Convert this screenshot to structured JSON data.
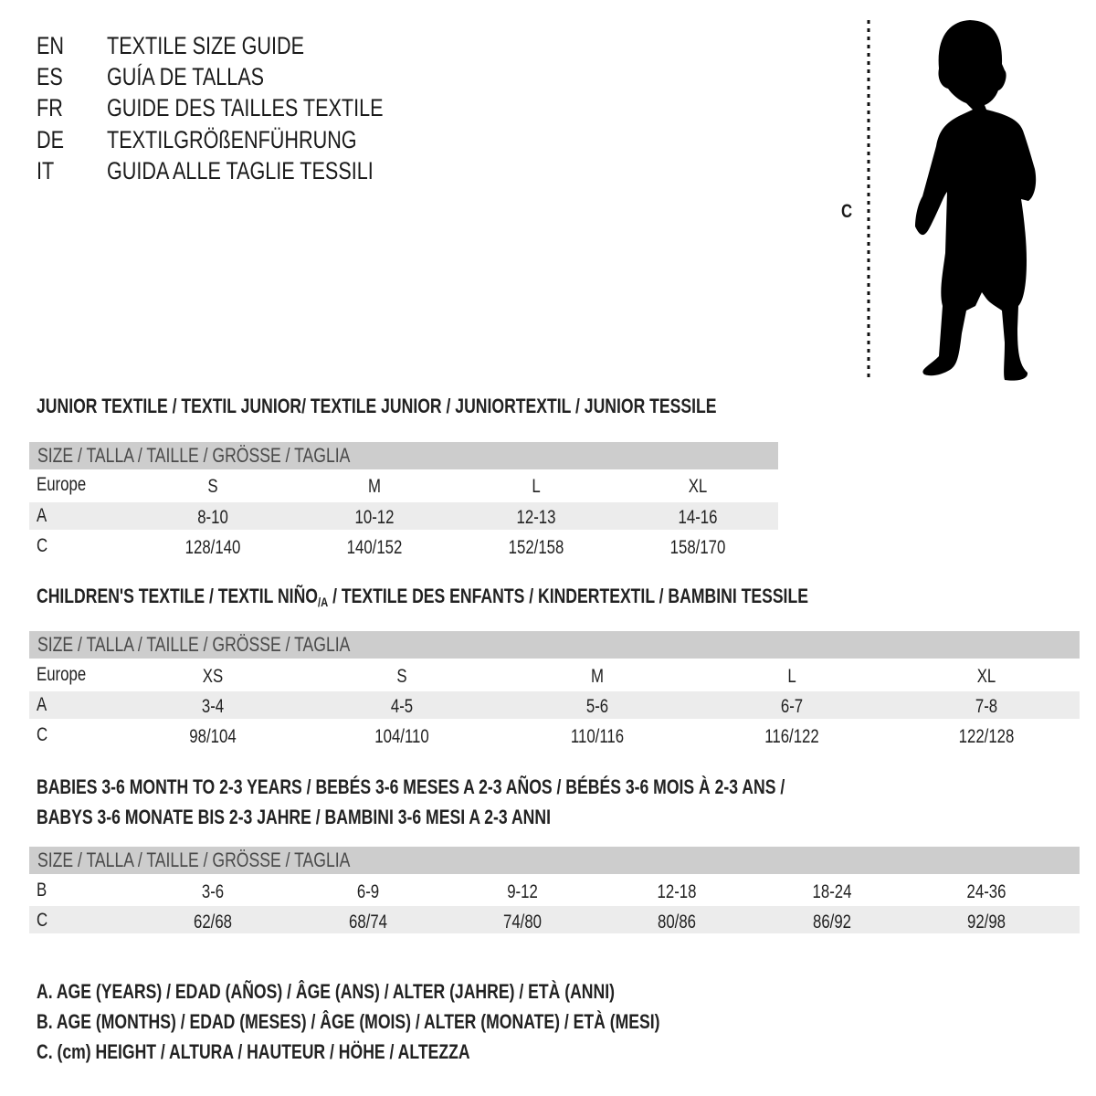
{
  "languages": [
    {
      "code": "EN",
      "title": "TEXTILE SIZE GUIDE"
    },
    {
      "code": "ES",
      "title": "GUÍA DE TALLAS"
    },
    {
      "code": "FR",
      "title": "GUIDE DES TAILLES TEXTILE"
    },
    {
      "code": "DE",
      "title": "TEXTILGRÖßENFÜHRUNG"
    },
    {
      "code": "IT",
      "title": "GUIDA ALLE TAGLIE TESSILI"
    }
  ],
  "figure": {
    "measure_label": "C"
  },
  "junior": {
    "heading": "JUNIOR TEXTILE / TEXTIL JUNIOR/ TEXTILE JUNIOR / JUNIORTEXTIL / JUNIOR TESSILE",
    "size_header": "SIZE / TALLA / TAILLE / GRÖSSE / TAGLIA",
    "rows": [
      {
        "label": "Europe",
        "values": [
          "S",
          "M",
          "L",
          "XL"
        ]
      },
      {
        "label": "A",
        "values": [
          "8-10",
          "10-12",
          "12-13",
          "14-16"
        ]
      },
      {
        "label": "C",
        "values": [
          "128/140",
          "140/152",
          "152/158",
          "158/170"
        ]
      }
    ]
  },
  "children": {
    "heading_before": "CHILDREN'S TEXTILE / TEXTIL NIÑO",
    "heading_sub": "/A",
    "heading_after": " / TEXTILE DES ENFANTS / KINDERTEXTIL / BAMBINI TESSILE",
    "size_header": "SIZE / TALLA / TAILLE / GRÖSSE / TAGLIA",
    "rows": [
      {
        "label": "Europe",
        "values": [
          "XS",
          "S",
          "M",
          "L",
          "XL"
        ]
      },
      {
        "label": "A",
        "values": [
          "3-4",
          "4-5",
          "5-6",
          "6-7",
          "7-8"
        ]
      },
      {
        "label": "C",
        "values": [
          "98/104",
          "104/110",
          "110/116",
          "116/122",
          "122/128"
        ]
      }
    ]
  },
  "babies": {
    "heading_line1": "BABIES 3-6 MONTH TO 2-3 YEARS / BEBÉS 3-6 MESES A 2-3 AÑOS / BÉBÉS 3-6 MOIS À 2-3 ANS /",
    "heading_line2": "BABYS 3-6 MONATE BIS 2-3 JAHRE / BAMBINI 3-6 MESI A 2-3 ANNI",
    "size_header": "SIZE / TALLA / TAILLE / GRÖSSE / TAGLIA",
    "rows": [
      {
        "label": "B",
        "values": [
          "3-6",
          "6-9",
          "9-12",
          "12-18",
          "18-24",
          "24-36"
        ]
      },
      {
        "label": "C",
        "values": [
          "62/68",
          "68/74",
          "74/80",
          "80/86",
          "86/92",
          "92/98"
        ]
      }
    ]
  },
  "legend": [
    "A. AGE (YEARS) / EDAD (AÑOS) / ÂGE (ANS) / ALTER (JAHRE) / ETÀ (ANNI)",
    "B. AGE (MONTHS) / EDAD (MESES) / ÂGE (MOIS) / ALTER (MONATE) / ETÀ (MESI)",
    "C. (cm) HEIGHT / ALTURA / HAUTEUR / HÖHE / ALTEZZA"
  ],
  "colors": {
    "header_band": "#cdcdcd",
    "alt_band": "#ececec",
    "text": "#1a1a1a"
  }
}
